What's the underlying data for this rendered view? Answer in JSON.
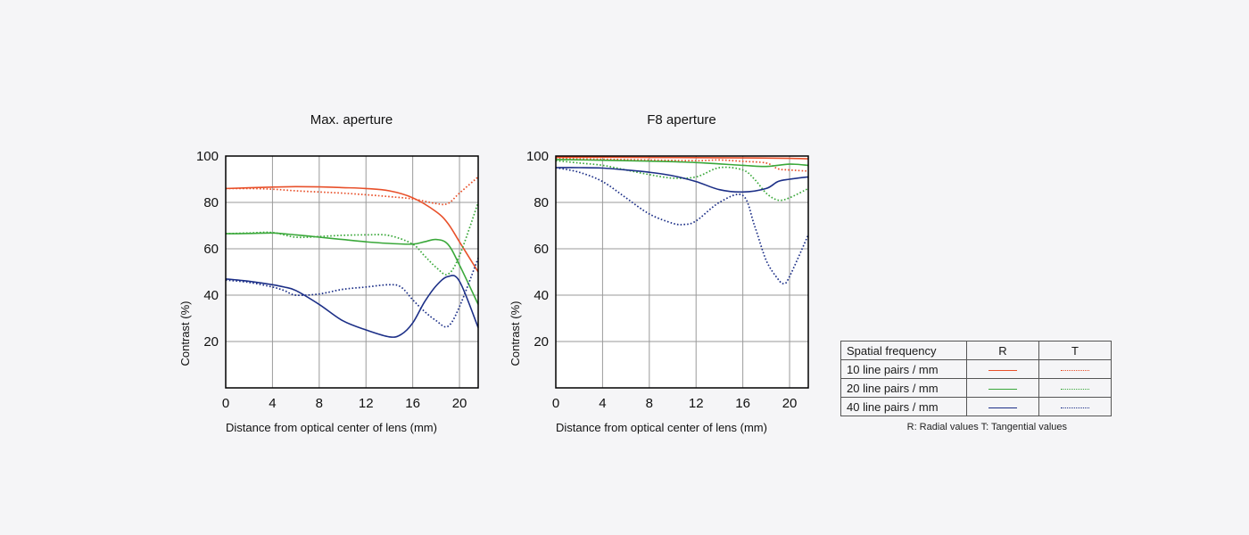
{
  "chart_data": [
    {
      "type": "line",
      "title": "Max. aperture",
      "xlabel": "Distance from optical center of lens (mm)",
      "ylabel": "Contrast (%)",
      "xlim": [
        0,
        21.6
      ],
      "ylim": [
        0,
        100
      ],
      "xticks": [
        0,
        4,
        8,
        12,
        16,
        20
      ],
      "yticks": [
        20,
        40,
        60,
        80,
        100
      ],
      "grid": true,
      "series": [
        {
          "name": "10 line pairs / mm R",
          "color": "#e8502a",
          "style": "solid",
          "x": [
            0,
            2,
            4,
            6,
            8,
            10,
            12,
            14,
            16,
            18,
            19,
            20,
            21.6
          ],
          "y": [
            86,
            86.3,
            86.6,
            86.8,
            86.7,
            86.4,
            86,
            85,
            82,
            76,
            71,
            63,
            50
          ]
        },
        {
          "name": "10 line pairs / mm T",
          "color": "#e8502a",
          "style": "dotted",
          "x": [
            0,
            2,
            4,
            6,
            8,
            10,
            12,
            14,
            16,
            18,
            19,
            20,
            21.6
          ],
          "y": [
            86,
            86,
            85.7,
            85,
            84.5,
            84,
            83.3,
            82.5,
            81.5,
            79.5,
            79.5,
            84,
            91
          ]
        },
        {
          "name": "20 line pairs / mm R",
          "color": "#3aa83a",
          "style": "solid",
          "x": [
            0,
            2,
            4,
            6,
            8,
            10,
            12,
            14,
            16,
            17,
            18,
            19,
            20,
            21.6
          ],
          "y": [
            66.5,
            66.6,
            66.8,
            66,
            65,
            64,
            63,
            62.3,
            62,
            63,
            64,
            62,
            53,
            36
          ]
        },
        {
          "name": "20 line pairs / mm T",
          "color": "#3aa83a",
          "style": "dotted",
          "x": [
            0,
            2,
            4,
            6,
            8,
            10,
            12,
            14,
            16,
            17,
            18,
            19,
            20,
            21.6
          ],
          "y": [
            66.5,
            66.8,
            67,
            65,
            65.3,
            65.8,
            66,
            65.7,
            62,
            57,
            52,
            49,
            57,
            80
          ]
        },
        {
          "name": "40 line pairs / mm R",
          "color": "#1c2f87",
          "style": "solid",
          "x": [
            0,
            2,
            4,
            5,
            6,
            8,
            10,
            12,
            14,
            15,
            16,
            17,
            18,
            19,
            20,
            21.6
          ],
          "y": [
            47,
            46,
            44.5,
            43.5,
            42,
            36,
            29,
            25,
            22,
            23,
            28,
            37,
            44,
            48,
            46,
            26
          ]
        },
        {
          "name": "40 line pairs / mm T",
          "color": "#1c2f87",
          "style": "dotted",
          "x": [
            0,
            2,
            4,
            5,
            6,
            8,
            10,
            12,
            14,
            15,
            16,
            17,
            18,
            19,
            20,
            21.6
          ],
          "y": [
            46.5,
            45.5,
            43.5,
            42,
            40,
            40.5,
            42.5,
            43.5,
            44.5,
            43.5,
            38,
            33,
            29,
            26.5,
            35,
            56
          ]
        }
      ]
    },
    {
      "type": "line",
      "title": "F8 aperture",
      "xlabel": "Distance from optical center of lens (mm)",
      "ylabel": "Contrast (%)",
      "xlim": [
        0,
        21.6
      ],
      "ylim": [
        0,
        100
      ],
      "xticks": [
        0,
        4,
        8,
        12,
        16,
        20
      ],
      "yticks": [
        20,
        40,
        60,
        80,
        100
      ],
      "grid": true,
      "series": [
        {
          "name": "10 line pairs / mm R",
          "color": "#e8502a",
          "style": "solid",
          "x": [
            0,
            4,
            8,
            12,
            16,
            20,
            21.6
          ],
          "y": [
            99.5,
            99.5,
            99.4,
            99.3,
            99.2,
            99,
            98.8
          ]
        },
        {
          "name": "10 line pairs / mm T",
          "color": "#e8502a",
          "style": "dotted",
          "x": [
            0,
            4,
            8,
            12,
            14,
            16,
            18,
            19,
            20,
            21.6
          ],
          "y": [
            99,
            98.6,
            98.3,
            98,
            98.3,
            97.7,
            97,
            94.5,
            94,
            93.5
          ]
        },
        {
          "name": "20 line pairs / mm R",
          "color": "#3aa83a",
          "style": "solid",
          "x": [
            0,
            4,
            8,
            12,
            16,
            18,
            20,
            21.6
          ],
          "y": [
            98.5,
            98.2,
            97.8,
            97.2,
            96,
            95.5,
            96.5,
            96
          ]
        },
        {
          "name": "20 line pairs / mm T",
          "color": "#3aa83a",
          "style": "dotted",
          "x": [
            0,
            2,
            4,
            6,
            8,
            10,
            12,
            14,
            16,
            17,
            18,
            19,
            20,
            21.6
          ],
          "y": [
            98,
            97,
            96,
            94,
            92,
            90.5,
            91,
            95,
            94,
            90,
            84,
            81,
            82,
            86
          ]
        },
        {
          "name": "40 line pairs / mm R",
          "color": "#1c2f87",
          "style": "solid",
          "x": [
            0,
            2,
            4,
            6,
            8,
            10,
            12,
            14,
            16,
            18,
            19,
            20,
            21.6
          ],
          "y": [
            95,
            95,
            94.8,
            94,
            93,
            91.5,
            89,
            85.5,
            84.5,
            86,
            89,
            90,
            91
          ]
        },
        {
          "name": "40 line pairs / mm T",
          "color": "#1c2f87",
          "style": "dotted",
          "x": [
            0,
            2,
            4,
            6,
            8,
            10,
            11,
            12,
            14,
            16,
            17,
            18,
            19,
            19.5,
            20,
            21.6
          ],
          "y": [
            95,
            93,
            89,
            82,
            75,
            71,
            70.5,
            72,
            80,
            83,
            70,
            55,
            47,
            45,
            48,
            66
          ]
        }
      ]
    }
  ],
  "legend": {
    "header": {
      "label": "Spatial frequency",
      "r": "R",
      "t": "T"
    },
    "rows": [
      {
        "label": "10 line pairs / mm",
        "color": "#e8502a"
      },
      {
        "label": "20 line pairs / mm",
        "color": "#3aa83a"
      },
      {
        "label": "40 line pairs / mm",
        "color": "#1c2f87"
      }
    ],
    "note": "R: Radial values  T: Tangential values"
  }
}
